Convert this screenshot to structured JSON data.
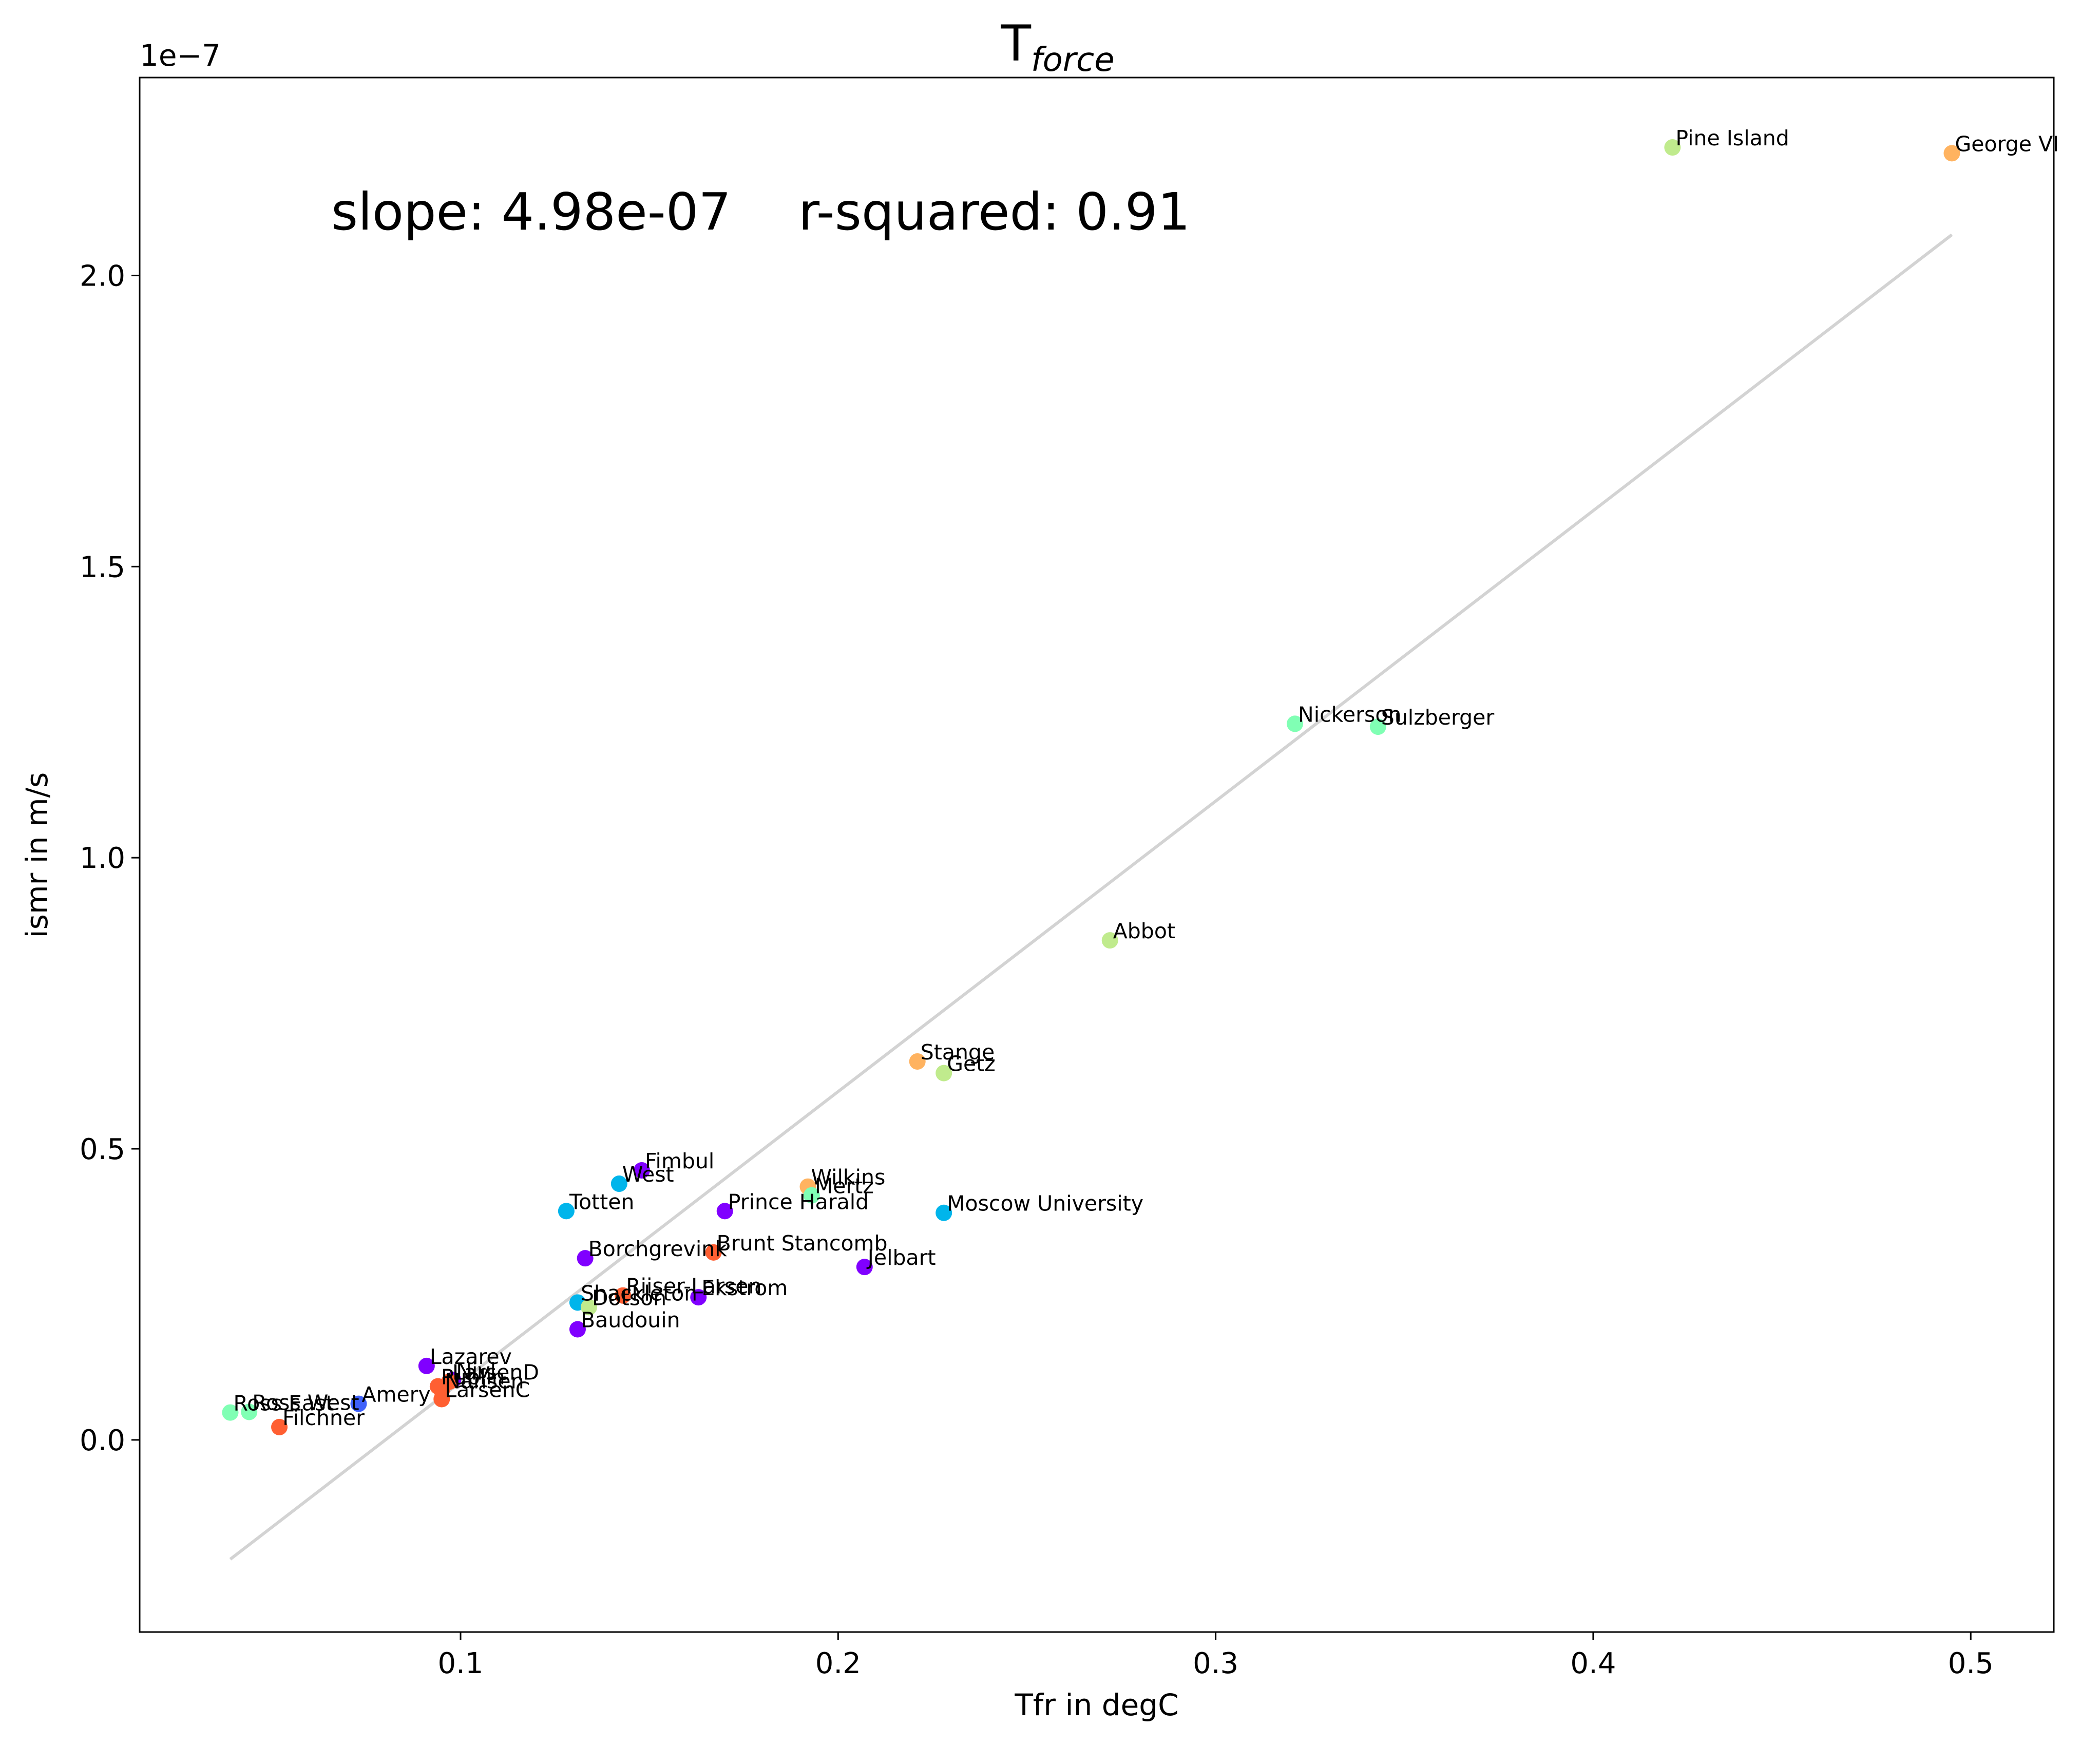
{
  "chart_data": {
    "type": "scatter",
    "title_main": "T",
    "title_sub": "force",
    "xlabel": "Tfr in degC",
    "ylabel": "ismr in m/s",
    "y_offset_label": "1e−7",
    "annotation": {
      "slope_text": "slope: 4.98e-07",
      "r2_text": "r-squared: 0.91"
    },
    "xlim": [
      0.015,
      0.522
    ],
    "ylim": [
      -0.33,
      2.34
    ],
    "x_ticks": [
      0.1,
      0.2,
      0.3,
      0.4,
      0.5
    ],
    "x_tick_labels": [
      "0.1",
      "0.2",
      "0.3",
      "0.4",
      "0.5"
    ],
    "y_ticks": [
      0.0,
      0.5,
      1.0,
      1.5,
      2.0
    ],
    "y_tick_labels": [
      "0.0",
      "0.5",
      "1.0",
      "1.5",
      "2.0"
    ],
    "grid": false,
    "fit_line": {
      "x": [
        0.039,
        0.495
      ],
      "y": [
        -0.205,
        2.07
      ],
      "color": "#d3d3d3"
    },
    "points": [
      {
        "name": "Pine Island",
        "x": 0.421,
        "y": 2.22,
        "color": "#c0eb8d"
      },
      {
        "name": "George VI",
        "x": 0.495,
        "y": 2.21,
        "color": "#ffb360"
      },
      {
        "name": "Nickerson",
        "x": 0.321,
        "y": 1.23,
        "color": "#80ffb4"
      },
      {
        "name": "Sulzberger",
        "x": 0.343,
        "y": 1.225,
        "color": "#80ffb4"
      },
      {
        "name": "Abbot",
        "x": 0.272,
        "y": 0.858,
        "color": "#c0eb8d"
      },
      {
        "name": "Stange",
        "x": 0.221,
        "y": 0.65,
        "color": "#ffb360"
      },
      {
        "name": "Getz",
        "x": 0.228,
        "y": 0.63,
        "color": "#c0eb8d"
      },
      {
        "name": "Fimbul",
        "x": 0.148,
        "y": 0.463,
        "color": "#8000ff"
      },
      {
        "name": "West",
        "x": 0.142,
        "y": 0.44,
        "color": "#00b5eb"
      },
      {
        "name": "Wilkins",
        "x": 0.192,
        "y": 0.435,
        "color": "#ffb360"
      },
      {
        "name": "Mertz",
        "x": 0.193,
        "y": 0.42,
        "color": "#80ffb4"
      },
      {
        "name": "Totten",
        "x": 0.128,
        "y": 0.393,
        "color": "#00b5eb"
      },
      {
        "name": "Prince Harald",
        "x": 0.17,
        "y": 0.393,
        "color": "#8000ff"
      },
      {
        "name": "Moscow University",
        "x": 0.228,
        "y": 0.39,
        "color": "#00b5eb"
      },
      {
        "name": "Brunt Stancomb",
        "x": 0.167,
        "y": 0.322,
        "color": "#ff5f32"
      },
      {
        "name": "Borchgrevink",
        "x": 0.133,
        "y": 0.312,
        "color": "#8000ff"
      },
      {
        "name": "Jelbart",
        "x": 0.207,
        "y": 0.297,
        "color": "#8000ff"
      },
      {
        "name": "Riiser-Larsen",
        "x": 0.143,
        "y": 0.248,
        "color": "#ff5f32"
      },
      {
        "name": "Ekstrom",
        "x": 0.163,
        "y": 0.245,
        "color": "#8000ff"
      },
      {
        "name": "Shackleton",
        "x": 0.131,
        "y": 0.236,
        "color": "#00b5eb"
      },
      {
        "name": "Dotson",
        "x": 0.134,
        "y": 0.228,
        "color": "#c0eb8d"
      },
      {
        "name": "Baudouin",
        "x": 0.131,
        "y": 0.19,
        "color": "#8000ff"
      },
      {
        "name": "Lazarev",
        "x": 0.091,
        "y": 0.127,
        "color": "#8000ff"
      },
      {
        "name": "Nivl",
        "x": 0.098,
        "y": 0.103,
        "color": "#8000ff"
      },
      {
        "name": "LarsenD",
        "x": 0.097,
        "y": 0.1,
        "color": "#ff5f32"
      },
      {
        "name": "Publin",
        "x": 0.094,
        "y": 0.092,
        "color": "#ff5f32"
      },
      {
        "name": "Nansen",
        "x": 0.095,
        "y": 0.085,
        "color": "#ff5f32"
      },
      {
        "name": "LarsenC",
        "x": 0.095,
        "y": 0.07,
        "color": "#ff5f32"
      },
      {
        "name": "Amery",
        "x": 0.073,
        "y": 0.062,
        "color": "#3f61fa"
      },
      {
        "name": "Ross West",
        "x": 0.044,
        "y": 0.048,
        "color": "#80ffb4"
      },
      {
        "name": "Ross East",
        "x": 0.039,
        "y": 0.047,
        "color": "#80ffb4"
      },
      {
        "name": "Filchner",
        "x": 0.052,
        "y": 0.022,
        "color": "#ff5f32"
      }
    ]
  }
}
